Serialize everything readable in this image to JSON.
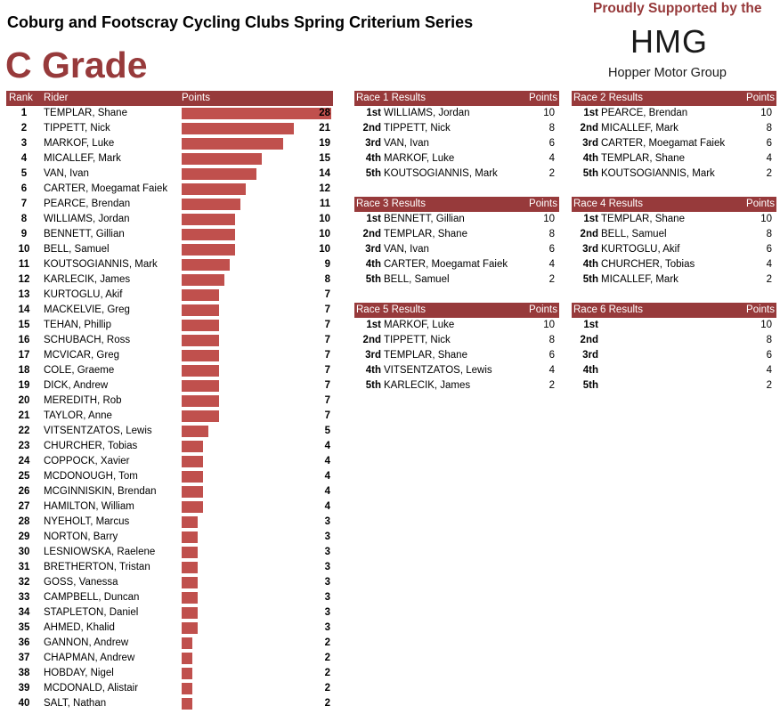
{
  "title": "Coburg and Footscray Cycling Clubs Spring Criterium Series",
  "grade": "C Grade",
  "sponsor": {
    "text": "Proudly Supported by the",
    "logo": "HMG",
    "name": "Hopper Motor Group"
  },
  "standings": {
    "headers": {
      "rank": "Rank",
      "rider": "Rider",
      "points": "Points"
    },
    "max_points": 28,
    "rows": [
      {
        "rank": "1",
        "rider": "TEMPLAR, Shane",
        "points": 28
      },
      {
        "rank": "2",
        "rider": "TIPPETT, Nick",
        "points": 21
      },
      {
        "rank": "3",
        "rider": "MARKOF, Luke",
        "points": 19
      },
      {
        "rank": "4",
        "rider": "MICALLEF, Mark",
        "points": 15
      },
      {
        "rank": "5",
        "rider": "VAN, Ivan",
        "points": 14
      },
      {
        "rank": "6",
        "rider": "CARTER, Moegamat Faiek",
        "points": 12
      },
      {
        "rank": "7",
        "rider": "PEARCE, Brendan",
        "points": 11
      },
      {
        "rank": "8",
        "rider": "WILLIAMS, Jordan",
        "points": 10
      },
      {
        "rank": "9",
        "rider": "BENNETT, Gillian",
        "points": 10
      },
      {
        "rank": "10",
        "rider": "BELL, Samuel",
        "points": 10
      },
      {
        "rank": "11",
        "rider": "KOUTSOGIANNIS, Mark",
        "points": 9
      },
      {
        "rank": "12",
        "rider": "KARLECIK, James",
        "points": 8
      },
      {
        "rank": "13",
        "rider": "KURTOGLU, Akif",
        "points": 7
      },
      {
        "rank": "14",
        "rider": "MACKELVIE, Greg",
        "points": 7
      },
      {
        "rank": "15",
        "rider": "TEHAN, Phillip",
        "points": 7
      },
      {
        "rank": "16",
        "rider": "SCHUBACH, Ross",
        "points": 7
      },
      {
        "rank": "17",
        "rider": "MCVICAR, Greg",
        "points": 7
      },
      {
        "rank": "18",
        "rider": "COLE, Graeme",
        "points": 7
      },
      {
        "rank": "19",
        "rider": "DICK, Andrew",
        "points": 7
      },
      {
        "rank": "20",
        "rider": "MEREDITH, Rob",
        "points": 7
      },
      {
        "rank": "21",
        "rider": "TAYLOR, Anne",
        "points": 7
      },
      {
        "rank": "22",
        "rider": "VITSENTZATOS, Lewis",
        "points": 5
      },
      {
        "rank": "23",
        "rider": "CHURCHER, Tobias",
        "points": 4
      },
      {
        "rank": "24",
        "rider": "COPPOCK, Xavier",
        "points": 4
      },
      {
        "rank": "25",
        "rider": "MCDONOUGH, Tom",
        "points": 4
      },
      {
        "rank": "26",
        "rider": "MCGINNISKIN, Brendan",
        "points": 4
      },
      {
        "rank": "27",
        "rider": "HAMILTON, William",
        "points": 4
      },
      {
        "rank": "28",
        "rider": "NYEHOLT, Marcus",
        "points": 3
      },
      {
        "rank": "29",
        "rider": "NORTON, Barry",
        "points": 3
      },
      {
        "rank": "30",
        "rider": "LESNIOWSKA, Raelene",
        "points": 3
      },
      {
        "rank": "31",
        "rider": "BRETHERTON, Tristan",
        "points": 3
      },
      {
        "rank": "32",
        "rider": "GOSS, Vanessa",
        "points": 3
      },
      {
        "rank": "33",
        "rider": "CAMPBELL, Duncan",
        "points": 3
      },
      {
        "rank": "34",
        "rider": "STAPLETON, Daniel",
        "points": 3
      },
      {
        "rank": "35",
        "rider": "AHMED, Khalid",
        "points": 3
      },
      {
        "rank": "36",
        "rider": "GANNON, Andrew",
        "points": 2
      },
      {
        "rank": "37",
        "rider": "CHAPMAN, Andrew",
        "points": 2
      },
      {
        "rank": "38",
        "rider": "HOBDAY, Nigel",
        "points": 2
      },
      {
        "rank": "39",
        "rider": "MCDONALD, Alistair",
        "points": 2
      },
      {
        "rank": "40",
        "rider": "SALT, Nathan",
        "points": 2
      }
    ]
  },
  "races": [
    {
      "title": "Race 1 Results",
      "points_label": "Points",
      "results": [
        {
          "pos": "1st",
          "rider": "WILLIAMS, Jordan",
          "points": "10"
        },
        {
          "pos": "2nd",
          "rider": "TIPPETT, Nick",
          "points": "8"
        },
        {
          "pos": "3rd",
          "rider": "VAN, Ivan",
          "points": "6"
        },
        {
          "pos": "4th",
          "rider": "MARKOF, Luke",
          "points": "4"
        },
        {
          "pos": "5th",
          "rider": "KOUTSOGIANNIS, Mark",
          "points": "2"
        }
      ]
    },
    {
      "title": "Race 2 Results",
      "points_label": "Points",
      "results": [
        {
          "pos": "1st",
          "rider": "PEARCE, Brendan",
          "points": "10"
        },
        {
          "pos": "2nd",
          "rider": "MICALLEF, Mark",
          "points": "8"
        },
        {
          "pos": "3rd",
          "rider": "CARTER, Moegamat Faiek",
          "points": "6"
        },
        {
          "pos": "4th",
          "rider": "TEMPLAR, Shane",
          "points": "4"
        },
        {
          "pos": "5th",
          "rider": "KOUTSOGIANNIS, Mark",
          "points": "2"
        }
      ]
    },
    {
      "title": "Race 3 Results",
      "points_label": "Points",
      "results": [
        {
          "pos": "1st",
          "rider": "BENNETT, Gillian",
          "points": "10"
        },
        {
          "pos": "2nd",
          "rider": "TEMPLAR, Shane",
          "points": "8"
        },
        {
          "pos": "3rd",
          "rider": "VAN, Ivan",
          "points": "6"
        },
        {
          "pos": "4th",
          "rider": "CARTER, Moegamat Faiek",
          "points": "4"
        },
        {
          "pos": "5th",
          "rider": "BELL, Samuel",
          "points": "2"
        }
      ]
    },
    {
      "title": "Race 4 Results",
      "points_label": "Points",
      "results": [
        {
          "pos": "1st",
          "rider": "TEMPLAR, Shane",
          "points": "10"
        },
        {
          "pos": "2nd",
          "rider": "BELL, Samuel",
          "points": "8"
        },
        {
          "pos": "3rd",
          "rider": "KURTOGLU, Akif",
          "points": "6"
        },
        {
          "pos": "4th",
          "rider": "CHURCHER, Tobias",
          "points": "4"
        },
        {
          "pos": "5th",
          "rider": "MICALLEF, Mark",
          "points": "2"
        }
      ]
    },
    {
      "title": "Race 5 Results",
      "points_label": "Points",
      "results": [
        {
          "pos": "1st",
          "rider": "MARKOF, Luke",
          "points": "10"
        },
        {
          "pos": "2nd",
          "rider": "TIPPETT, Nick",
          "points": "8"
        },
        {
          "pos": "3rd",
          "rider": "TEMPLAR, Shane",
          "points": "6"
        },
        {
          "pos": "4th",
          "rider": "VITSENTZATOS, Lewis",
          "points": "4"
        },
        {
          "pos": "5th",
          "rider": "KARLECIK, James",
          "points": "2"
        }
      ]
    },
    {
      "title": "Race 6 Results",
      "points_label": "Points",
      "results": [
        {
          "pos": "1st",
          "rider": "",
          "points": "10"
        },
        {
          "pos": "2nd",
          "rider": "",
          "points": "8"
        },
        {
          "pos": "3rd",
          "rider": "",
          "points": "6"
        },
        {
          "pos": "4th",
          "rider": "",
          "points": "4"
        },
        {
          "pos": "5th",
          "rider": "",
          "points": "2"
        }
      ]
    }
  ],
  "colors": {
    "accent": "#973a3b",
    "bar": "#c0504d"
  }
}
